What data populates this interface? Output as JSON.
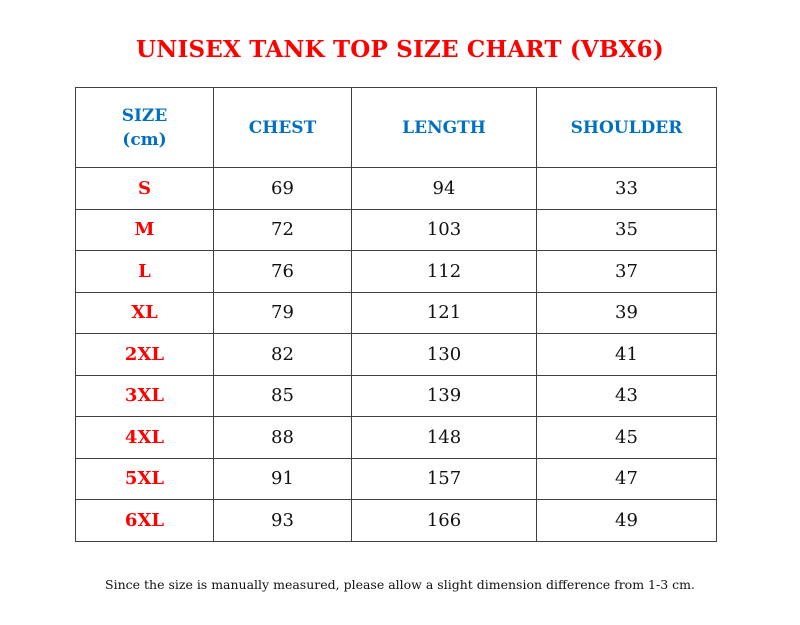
{
  "title": "UNISEX TANK TOP SIZE CHART (VBX6)",
  "colors": {
    "title": "#ff0000",
    "header": "#0070c0",
    "size_label": "#ff0000"
  },
  "headers": [
    "SIZE",
    "(cm)",
    "CHEST",
    "LENGTH",
    "SHOULDER"
  ],
  "rows": [
    [
      "S",
      "69",
      "94",
      "33"
    ],
    [
      "M",
      "72",
      "103",
      "35"
    ],
    [
      "L",
      "76",
      "112",
      "37"
    ],
    [
      "XL",
      "79",
      "121",
      "39"
    ],
    [
      "2XL",
      "82",
      "130",
      "41"
    ],
    [
      "3XL",
      "85",
      "139",
      "43"
    ],
    [
      "4XL",
      "88",
      "148",
      "45"
    ],
    [
      "5XL",
      "91",
      "157",
      "47"
    ],
    [
      "6XL",
      "93",
      "166",
      "49"
    ]
  ],
  "note": "Since the size is manually measured, please allow a slight dimension difference from 1-3 cm."
}
